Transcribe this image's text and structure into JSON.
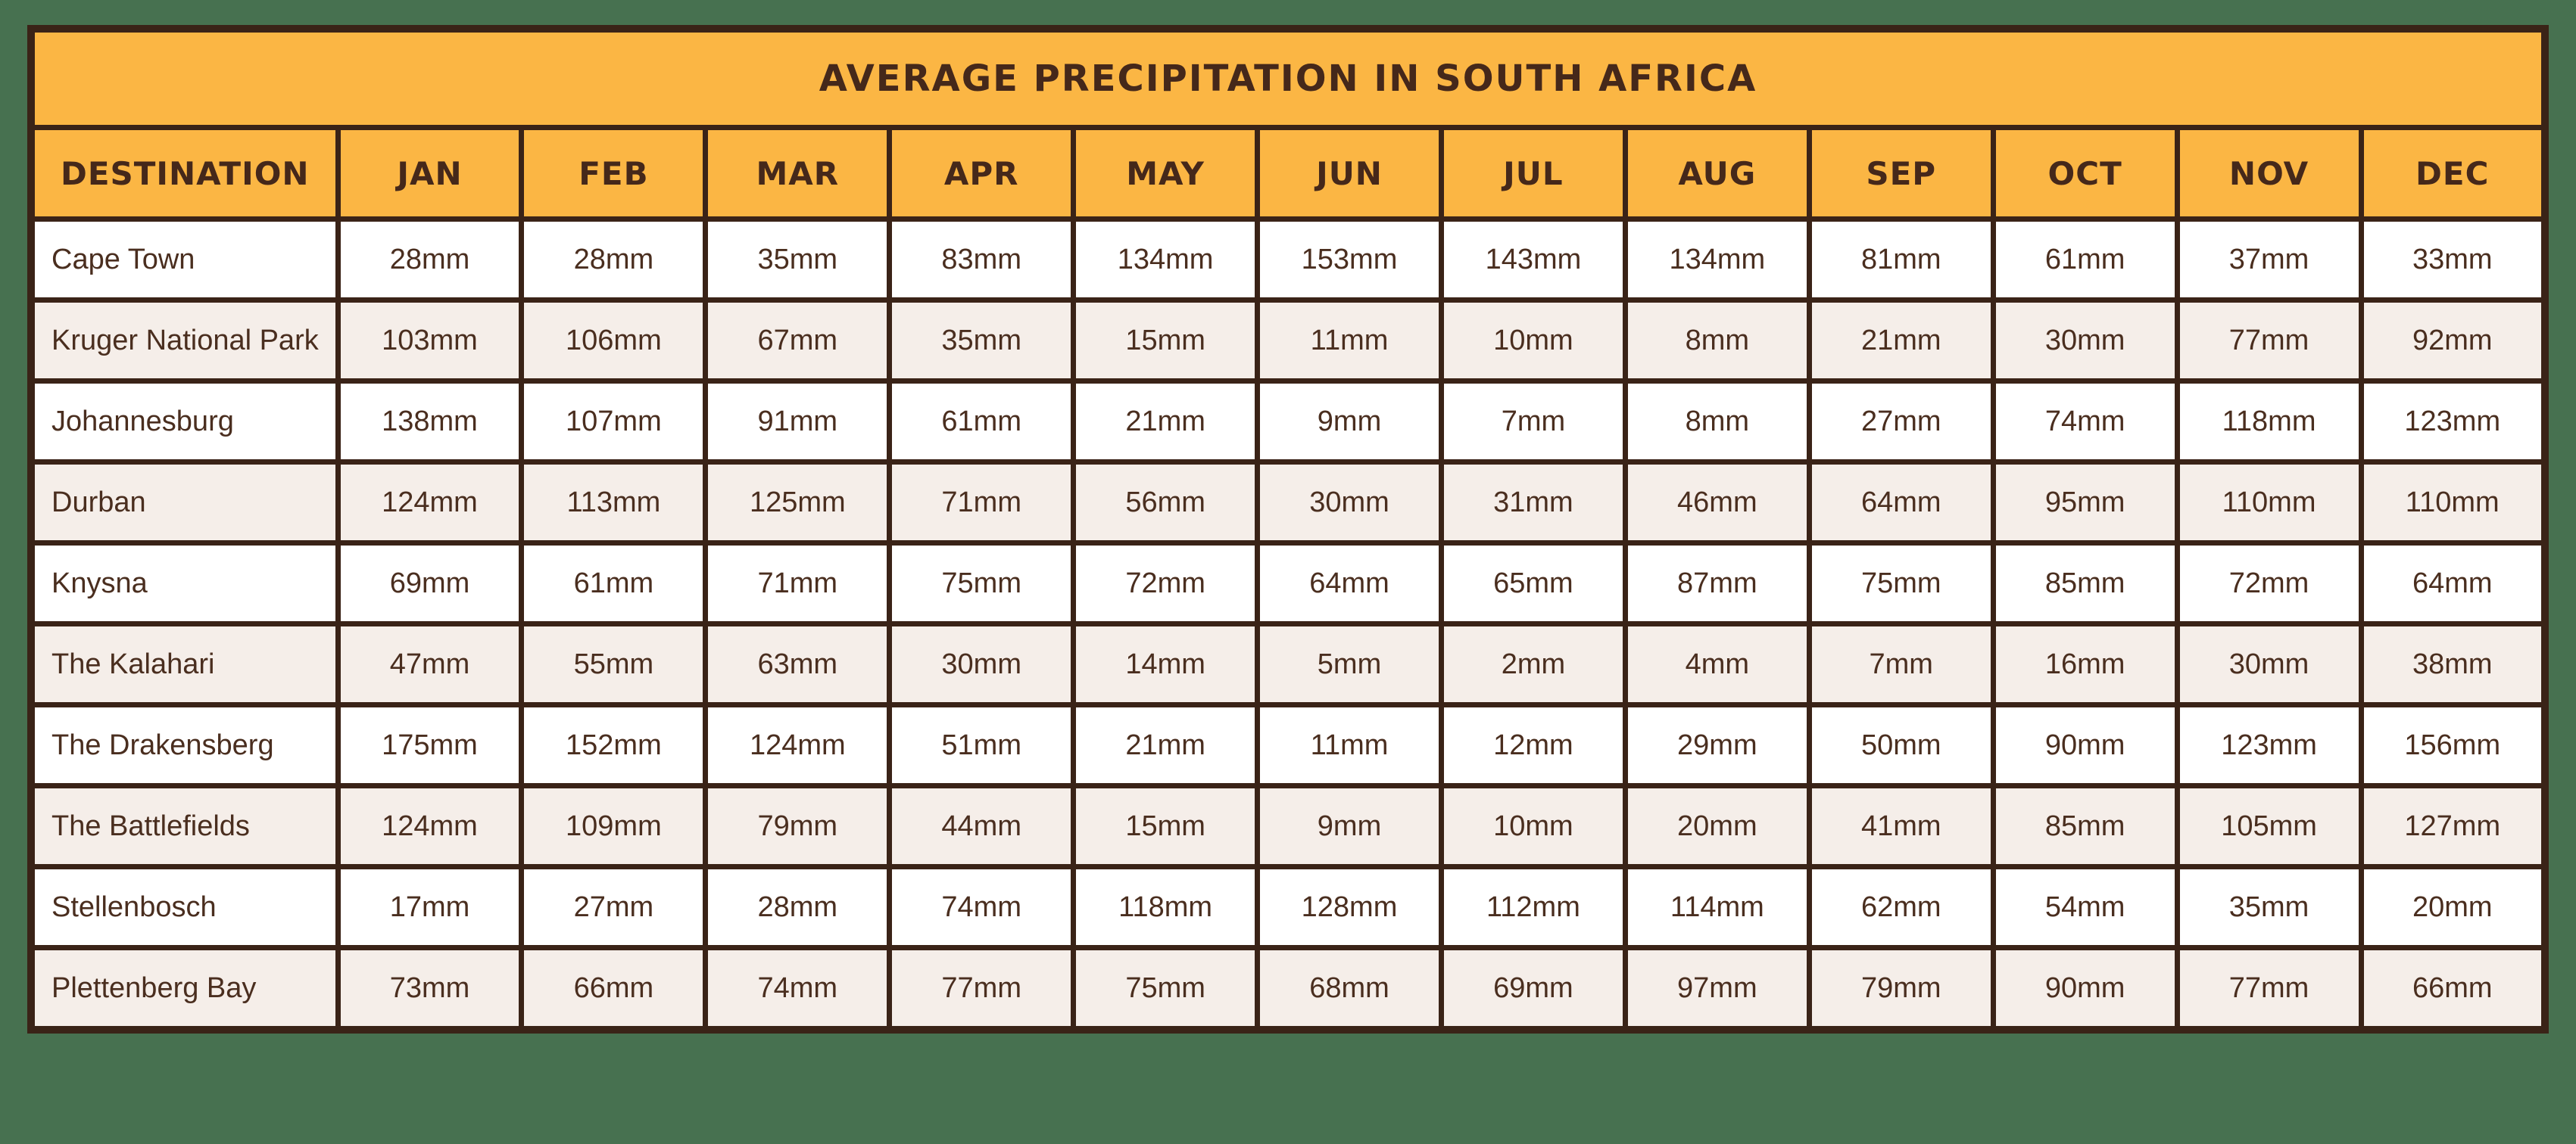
{
  "table": {
    "title": "AVERAGE PRECIPITATION IN SOUTH AFRICA",
    "unit": "mm",
    "columns": [
      "DESTINATION",
      "JAN",
      "FEB",
      "MAR",
      "APR",
      "MAY",
      "JUN",
      "JUL",
      "AUG",
      "SEP",
      "OCT",
      "NOV",
      "DEC"
    ],
    "rows": [
      {
        "destination": "Cape Town",
        "values": [
          "28mm",
          "28mm",
          "35mm",
          "83mm",
          "134mm",
          "153mm",
          "143mm",
          "134mm",
          "81mm",
          "61mm",
          "37mm",
          "33mm"
        ]
      },
      {
        "destination": "Kruger National Park",
        "values": [
          "103mm",
          "106mm",
          "67mm",
          "35mm",
          "15mm",
          "11mm",
          "10mm",
          "8mm",
          "21mm",
          "30mm",
          "77mm",
          "92mm"
        ]
      },
      {
        "destination": "Johannesburg",
        "values": [
          "138mm",
          "107mm",
          "91mm",
          "61mm",
          "21mm",
          "9mm",
          "7mm",
          "8mm",
          "27mm",
          "74mm",
          "118mm",
          "123mm"
        ]
      },
      {
        "destination": "Durban",
        "values": [
          "124mm",
          "113mm",
          "125mm",
          "71mm",
          "56mm",
          "30mm",
          "31mm",
          "46mm",
          "64mm",
          "95mm",
          "110mm",
          "110mm"
        ]
      },
      {
        "destination": "Knysna",
        "values": [
          "69mm",
          "61mm",
          "71mm",
          "75mm",
          "72mm",
          "64mm",
          "65mm",
          "87mm",
          "75mm",
          "85mm",
          "72mm",
          "64mm"
        ]
      },
      {
        "destination": "The Kalahari",
        "values": [
          "47mm",
          "55mm",
          "63mm",
          "30mm",
          "14mm",
          "5mm",
          "2mm",
          "4mm",
          "7mm",
          "16mm",
          "30mm",
          "38mm"
        ]
      },
      {
        "destination": "The Drakensberg",
        "values": [
          "175mm",
          "152mm",
          "124mm",
          "51mm",
          "21mm",
          "11mm",
          "12mm",
          "29mm",
          "50mm",
          "90mm",
          "123mm",
          "156mm"
        ]
      },
      {
        "destination": "The Battlefields",
        "values": [
          "124mm",
          "109mm",
          "79mm",
          "44mm",
          "15mm",
          "9mm",
          "10mm",
          "20mm",
          "41mm",
          "85mm",
          "105mm",
          "127mm"
        ]
      },
      {
        "destination": "Stellenbosch",
        "values": [
          "17mm",
          "27mm",
          "28mm",
          "74mm",
          "118mm",
          "128mm",
          "112mm",
          "114mm",
          "62mm",
          "54mm",
          "35mm",
          "20mm"
        ]
      },
      {
        "destination": "Plettenberg Bay",
        "values": [
          "73mm",
          "66mm",
          "74mm",
          "77mm",
          "75mm",
          "68mm",
          "69mm",
          "97mm",
          "79mm",
          "90mm",
          "77mm",
          "66mm"
        ]
      }
    ]
  },
  "colors": {
    "page_background": "#477150",
    "header_fill": "#FBB644",
    "border": "#3A2317",
    "header_text": "#45281A",
    "cell_text": "#4A2E1F",
    "row_fill_odd": "#FFFFFF",
    "row_fill_even": "#F5EEE9"
  },
  "chart_data": {
    "type": "table",
    "title": "Average Precipitation in South Africa",
    "unit": "mm",
    "categories": [
      "Jan",
      "Feb",
      "Mar",
      "Apr",
      "May",
      "Jun",
      "Jul",
      "Aug",
      "Sep",
      "Oct",
      "Nov",
      "Dec"
    ],
    "series": [
      {
        "name": "Cape Town",
        "values": [
          28,
          28,
          35,
          83,
          134,
          153,
          143,
          134,
          81,
          61,
          37,
          33
        ]
      },
      {
        "name": "Kruger National Park",
        "values": [
          103,
          106,
          67,
          35,
          15,
          11,
          10,
          8,
          21,
          30,
          77,
          92
        ]
      },
      {
        "name": "Johannesburg",
        "values": [
          138,
          107,
          91,
          61,
          21,
          9,
          7,
          8,
          27,
          74,
          118,
          123
        ]
      },
      {
        "name": "Durban",
        "values": [
          124,
          113,
          125,
          71,
          56,
          30,
          31,
          46,
          64,
          95,
          110,
          110
        ]
      },
      {
        "name": "Knysna",
        "values": [
          69,
          61,
          71,
          75,
          72,
          64,
          65,
          87,
          75,
          85,
          72,
          64
        ]
      },
      {
        "name": "The Kalahari",
        "values": [
          47,
          55,
          63,
          30,
          14,
          5,
          2,
          4,
          7,
          16,
          30,
          38
        ]
      },
      {
        "name": "The Drakensberg",
        "values": [
          175,
          152,
          124,
          51,
          21,
          11,
          12,
          29,
          50,
          90,
          123,
          156
        ]
      },
      {
        "name": "The Battlefields",
        "values": [
          124,
          109,
          79,
          44,
          15,
          9,
          10,
          20,
          41,
          85,
          105,
          127
        ]
      },
      {
        "name": "Stellenbosch",
        "values": [
          17,
          27,
          28,
          74,
          118,
          128,
          112,
          114,
          62,
          54,
          35,
          20
        ]
      },
      {
        "name": "Plettenberg Bay",
        "values": [
          73,
          66,
          74,
          77,
          75,
          68,
          69,
          97,
          79,
          90,
          77,
          66
        ]
      }
    ]
  }
}
